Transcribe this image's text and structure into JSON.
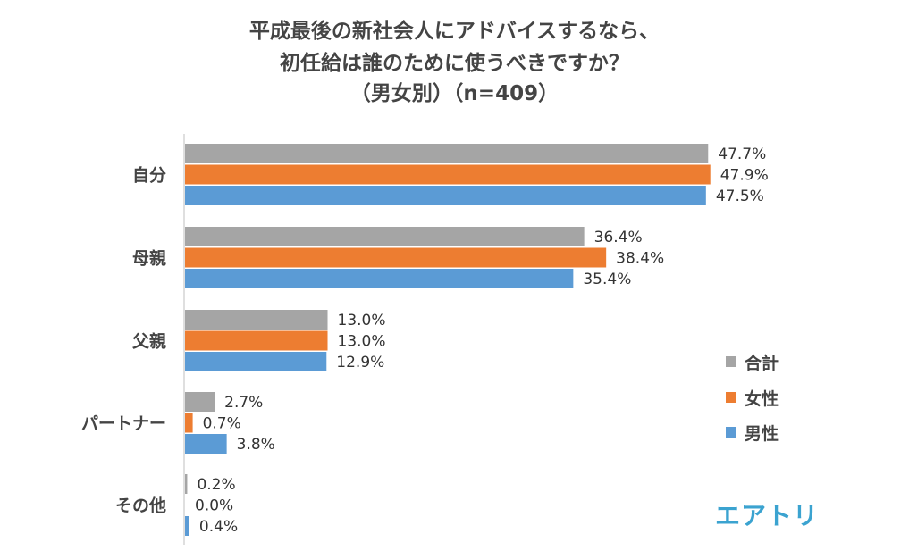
{
  "title_lines": [
    "平成最後の新社会人にアドバイスするなら、",
    "初任給は誰のために使うべきですか？",
    "（男女別）（n=409）"
  ],
  "logo_text": "エアトリ",
  "chart_data": {
    "type": "bar",
    "orientation": "horizontal",
    "categories": [
      "自分",
      "母親",
      "父親",
      "パートナー",
      "その他"
    ],
    "series": [
      {
        "name": "合計",
        "color": "#A5A5A5",
        "values": [
          47.7,
          36.4,
          13.0,
          2.7,
          0.2
        ],
        "labels": [
          "47.7%",
          "36.4%",
          "13.0%",
          "2.7%",
          "0.2%"
        ]
      },
      {
        "name": "女性",
        "color": "#ED7D31",
        "values": [
          47.9,
          38.4,
          13.0,
          0.7,
          0.0
        ],
        "labels": [
          "47.9%",
          "38.4%",
          "13.0%",
          "0.7%",
          "0.0%"
        ]
      },
      {
        "name": "男性",
        "color": "#5B9BD5",
        "values": [
          47.5,
          35.4,
          12.9,
          3.8,
          0.4
        ],
        "labels": [
          "47.5%",
          "35.4%",
          "12.9%",
          "3.8%",
          "0.4%"
        ]
      }
    ],
    "xlim": [
      0,
      50
    ],
    "unit": "%",
    "grid": false,
    "legend_position": "right"
  }
}
